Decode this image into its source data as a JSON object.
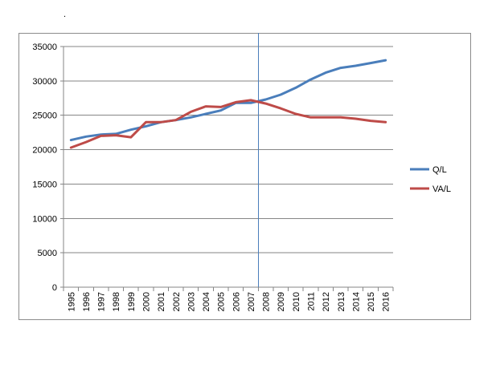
{
  "header": {
    "mark": "."
  },
  "chart_data": {
    "type": "line",
    "title": "",
    "xlabel": "",
    "ylabel": "",
    "categories": [
      "1995",
      "1996",
      "1997",
      "1998",
      "1999",
      "2000",
      "2001",
      "2002",
      "2003",
      "2004",
      "2005",
      "2006",
      "2007",
      "2008",
      "2009",
      "2010",
      "2011",
      "2012",
      "2013",
      "2014",
      "2015",
      "2016"
    ],
    "ylim": [
      0,
      35000
    ],
    "yticks": [
      "0",
      "5000",
      "10000",
      "15000",
      "20000",
      "25000",
      "30000",
      "35000"
    ],
    "grid": true,
    "legend_position": "right",
    "marker_line_at": "2008",
    "series": [
      {
        "name": "Q/L",
        "color": "#4a7ebb",
        "values": [
          21400,
          21900,
          22200,
          22300,
          22900,
          23400,
          24000,
          24300,
          24700,
          25200,
          25700,
          26800,
          26800,
          27300,
          28000,
          29000,
          30200,
          31200,
          31900,
          32200,
          32600,
          33000
        ]
      },
      {
        "name": "VA/L",
        "color": "#be4b48",
        "values": [
          20300,
          21100,
          22000,
          22100,
          21800,
          24000,
          24000,
          24300,
          25500,
          26300,
          26200,
          26900,
          27200,
          26700,
          26000,
          25200,
          24700,
          24700,
          24700,
          24500,
          24200,
          24000
        ]
      }
    ]
  }
}
